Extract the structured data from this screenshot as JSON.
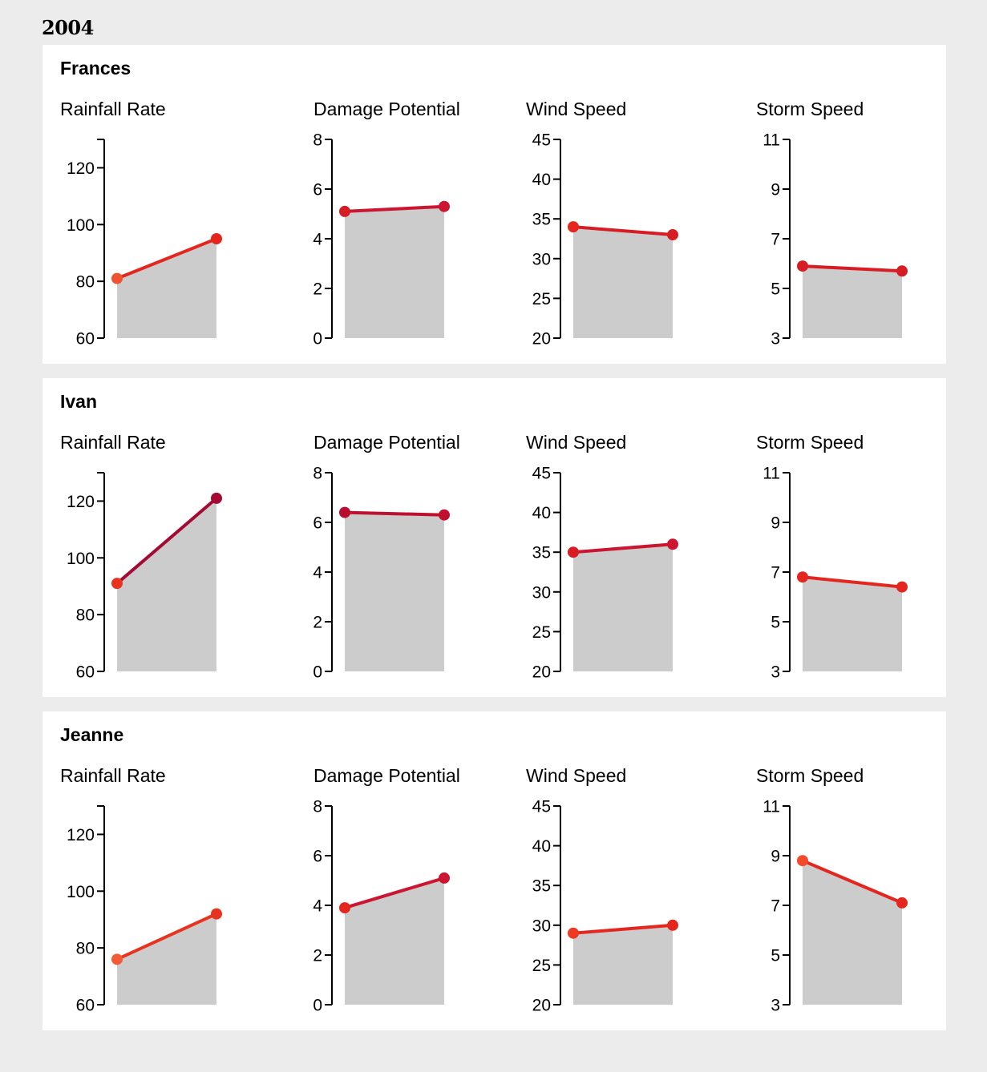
{
  "year": "2004",
  "colors": {
    "area": "#cccccc",
    "axis": "#000000",
    "panel_bg": "#ffffff",
    "page_bg": "#ececec"
  },
  "chart_data": [
    {
      "storm": "Frances",
      "type": "line",
      "charts": [
        {
          "title": "Rainfall Rate",
          "ylim": [
            60,
            130
          ],
          "ticks": [
            60,
            80,
            100,
            120
          ],
          "values": [
            81,
            95
          ],
          "colors": [
            "#f0512e",
            "#e4261e"
          ]
        },
        {
          "title": "Damage Potential",
          "ylim": [
            0,
            8
          ],
          "ticks": [
            0,
            2,
            4,
            6,
            8
          ],
          "values": [
            5.1,
            5.3
          ],
          "colors": [
            "#d81c24",
            "#cc1530"
          ]
        },
        {
          "title": "Wind Speed",
          "ylim": [
            20,
            45
          ],
          "ticks": [
            20,
            25,
            30,
            35,
            40,
            45
          ],
          "values": [
            34,
            33
          ],
          "colors": [
            "#e4261e",
            "#d81c24"
          ]
        },
        {
          "title": "Storm Speed",
          "ylim": [
            3,
            11
          ],
          "ticks": [
            3,
            5,
            7,
            9,
            11
          ],
          "values": [
            5.9,
            5.7
          ],
          "colors": [
            "#d81c24",
            "#d81c24"
          ]
        }
      ]
    },
    {
      "storm": "Ivan",
      "type": "line",
      "charts": [
        {
          "title": "Rainfall Rate",
          "ylim": [
            60,
            130
          ],
          "ticks": [
            60,
            80,
            100,
            120
          ],
          "values": [
            91,
            121
          ],
          "colors": [
            "#e8331f",
            "#a40a32"
          ]
        },
        {
          "title": "Damage Potential",
          "ylim": [
            0,
            8
          ],
          "ticks": [
            0,
            2,
            4,
            6,
            8
          ],
          "values": [
            6.4,
            6.3
          ],
          "colors": [
            "#b80d2e",
            "#c01030"
          ]
        },
        {
          "title": "Wind Speed",
          "ylim": [
            20,
            45
          ],
          "ticks": [
            20,
            25,
            30,
            35,
            40,
            45
          ],
          "values": [
            35,
            36
          ],
          "colors": [
            "#d81c24",
            "#cc1530"
          ]
        },
        {
          "title": "Storm Speed",
          "ylim": [
            3,
            11
          ],
          "ticks": [
            3,
            5,
            7,
            9,
            11
          ],
          "values": [
            6.8,
            6.4
          ],
          "colors": [
            "#e4261e",
            "#e4261e"
          ]
        }
      ]
    },
    {
      "storm": "Jeanne",
      "type": "line",
      "charts": [
        {
          "title": "Rainfall Rate",
          "ylim": [
            60,
            130
          ],
          "ticks": [
            60,
            80,
            100,
            120
          ],
          "values": [
            76,
            92
          ],
          "colors": [
            "#f45a35",
            "#e8331f"
          ]
        },
        {
          "title": "Damage Potential",
          "ylim": [
            0,
            8
          ],
          "ticks": [
            0,
            2,
            4,
            6,
            8
          ],
          "values": [
            3.9,
            5.1
          ],
          "colors": [
            "#e4261e",
            "#cc1530"
          ]
        },
        {
          "title": "Wind Speed",
          "ylim": [
            20,
            45
          ],
          "ticks": [
            20,
            25,
            30,
            35,
            40,
            45
          ],
          "values": [
            29,
            30
          ],
          "colors": [
            "#ee3a22",
            "#e4261e"
          ]
        },
        {
          "title": "Storm Speed",
          "ylim": [
            3,
            11
          ],
          "ticks": [
            3,
            5,
            7,
            9,
            11
          ],
          "values": [
            8.8,
            7.1
          ],
          "colors": [
            "#f24a2a",
            "#e4261e"
          ]
        }
      ]
    }
  ]
}
